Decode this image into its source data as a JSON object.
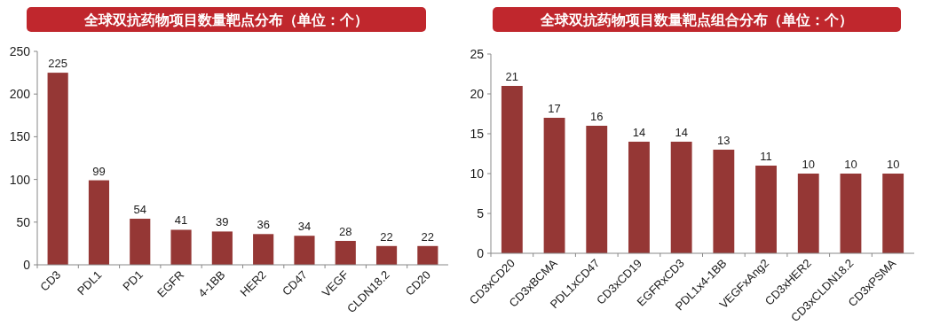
{
  "chart_data": [
    {
      "type": "bar",
      "title": "全球双抗药物项目数量靶点分布（单位：个）",
      "categories": [
        "CD3",
        "PDL1",
        "PD1",
        "EGFR",
        "4-1BB",
        "HER2",
        "CD47",
        "VEGF",
        "CLDN18.2",
        "CD20"
      ],
      "values": [
        225,
        99,
        54,
        41,
        39,
        36,
        34,
        28,
        22,
        22
      ],
      "color": "#953735",
      "ylim": [
        0,
        250
      ],
      "yticks": [
        0,
        50,
        100,
        150,
        200,
        250
      ],
      "data_labels": true,
      "grid": false
    },
    {
      "type": "bar",
      "title": "全球双抗药物项目数量靶点组合分布（单位：个）",
      "categories": [
        "CD3xCD20",
        "CD3xBCMA",
        "PDL1xCD47",
        "CD3xCD19",
        "EGFRxCD3",
        "PDL1x4-1BB",
        "VEGFxAng2",
        "CD3xHER2",
        "CD3xCLDN18.2",
        "CD3xPSMA"
      ],
      "values": [
        21,
        17,
        16,
        14,
        14,
        13,
        11,
        10,
        10,
        10
      ],
      "color": "#953735",
      "ylim": [
        0,
        25
      ],
      "yticks": [
        0,
        5,
        10,
        15,
        20,
        25
      ],
      "data_labels": true,
      "grid": false
    }
  ]
}
